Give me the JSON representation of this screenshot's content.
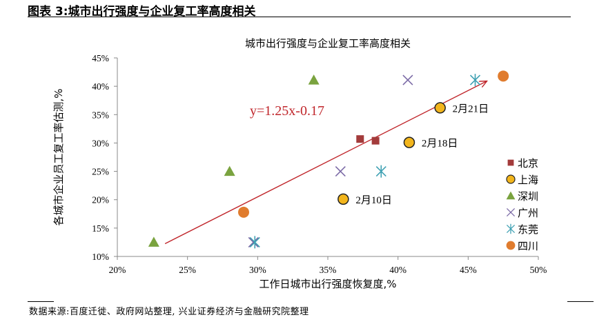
{
  "figure_title": "图表 3:城市出行强度与企业复工率高度相关",
  "source_note": "数据来源:百度迁徙、政府网站整理, 兴业证券经济与金融研究院整理",
  "chart_data": {
    "type": "scatter",
    "title": "城市出行强度与企业复工率高度相关",
    "xlabel": "工作日城市出行强度恢复度,%",
    "ylabel": "各城市企业员工复工率估测,%",
    "xlim": [
      0.2,
      0.5
    ],
    "ylim": [
      0.1,
      0.45
    ],
    "xticks": [
      0.2,
      0.25,
      0.3,
      0.35,
      0.4,
      0.45,
      0.5
    ],
    "yticks": [
      0.1,
      0.15,
      0.2,
      0.25,
      0.3,
      0.35,
      0.4,
      0.45
    ],
    "xtick_labels": [
      "20%",
      "25%",
      "30%",
      "35%",
      "40%",
      "45%",
      "50%"
    ],
    "ytick_labels": [
      "10%",
      "15%",
      "20%",
      "25%",
      "30%",
      "35%",
      "40%",
      "45%"
    ],
    "legend_position": "right",
    "series": [
      {
        "name": "北京",
        "marker": "square",
        "color": "#a33b3b",
        "points": [
          [
            0.373,
            0.307
          ],
          [
            0.384,
            0.304
          ]
        ]
      },
      {
        "name": "上海",
        "marker": "circle-ring",
        "color": "#f2b51c",
        "edge": "#222222",
        "points": [
          [
            0.361,
            0.201
          ],
          [
            0.408,
            0.301
          ],
          [
            0.43,
            0.362
          ]
        ]
      },
      {
        "name": "深圳",
        "marker": "triangle",
        "color": "#7aa33f",
        "points": [
          [
            0.226,
            0.125
          ],
          [
            0.28,
            0.25
          ],
          [
            0.34,
            0.411
          ]
        ]
      },
      {
        "name": "广州",
        "marker": "x",
        "color": "#7b6aa6",
        "points": [
          [
            0.297,
            0.125
          ],
          [
            0.359,
            0.25
          ],
          [
            0.407,
            0.411
          ]
        ]
      },
      {
        "name": "东莞",
        "marker": "asterisk",
        "color": "#3fa1b3",
        "points": [
          [
            0.298,
            0.125
          ],
          [
            0.388,
            0.25
          ],
          [
            0.455,
            0.411
          ]
        ]
      },
      {
        "name": "四川",
        "marker": "circle",
        "color": "#e07c2e",
        "points": [
          [
            0.29,
            0.178
          ],
          [
            0.475,
            0.418
          ]
        ]
      }
    ],
    "annotations": [
      {
        "text": "2月10日",
        "x": 0.361,
        "y": 0.201
      },
      {
        "text": "2月18日",
        "x": 0.408,
        "y": 0.301
      },
      {
        "text": "2月21日",
        "x": 0.43,
        "y": 0.362
      }
    ],
    "trendline": {
      "equation": "y=1.25x-0.17",
      "slope": 1.25,
      "intercept": -0.17,
      "x_start": 0.234,
      "x_end": 0.463,
      "color": "#c0262b"
    }
  }
}
